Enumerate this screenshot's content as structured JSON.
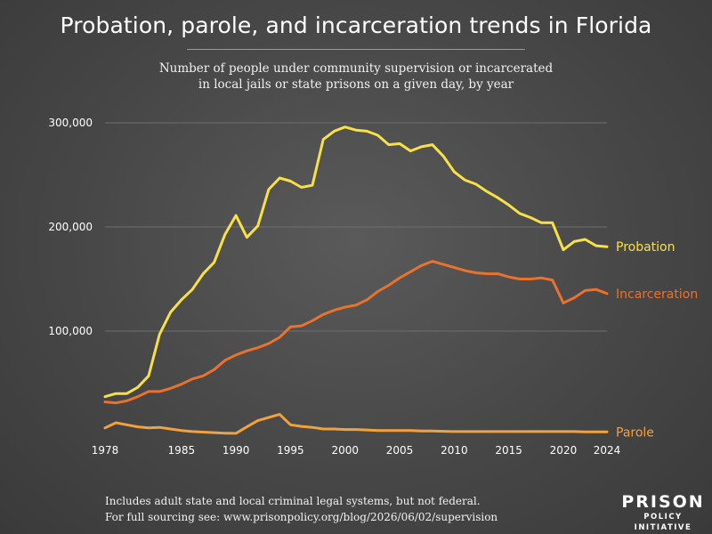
{
  "title": "Probation, parole, and incarceration trends in Florida",
  "subtitle": {
    "line1": "Number of people under community supervision or incarcerated",
    "line2": "in local jails or state prisons on a given day, by year"
  },
  "footer": {
    "line1": "Includes adult state and local criminal legal systems, but not federal.",
    "line2": "For full sourcing see: www.prisonpolicy.org/blog/2026/06/02/supervision"
  },
  "logo": {
    "line1": "PRISON",
    "line2": "POLICY INITIATIVE"
  },
  "colors": {
    "probation": "#f7e048",
    "incarceration": "#e8722e",
    "parole": "#f2a23c",
    "gridline": "#6e6e6e",
    "text": "#ffffff"
  },
  "chart_data": {
    "type": "line",
    "title": "Probation, parole, and incarceration trends in Florida",
    "xlabel": "",
    "ylabel": "",
    "xlim": [
      1978,
      2024
    ],
    "ylim": [
      0,
      300000
    ],
    "grid": "horizontal",
    "legend": "inline-right",
    "x_ticks": [
      "1978",
      "1985",
      "1990",
      "1995",
      "2000",
      "2005",
      "2010",
      "2015",
      "2020",
      "2024"
    ],
    "y_ticks": [
      "100,000",
      "200,000",
      "300,000"
    ],
    "x": [
      1978,
      1979,
      1980,
      1981,
      1982,
      1983,
      1984,
      1985,
      1986,
      1987,
      1988,
      1989,
      1990,
      1991,
      1992,
      1993,
      1994,
      1995,
      1996,
      1997,
      1998,
      1999,
      2000,
      2001,
      2002,
      2003,
      2004,
      2005,
      2006,
      2007,
      2008,
      2009,
      2010,
      2011,
      2012,
      2013,
      2014,
      2015,
      2016,
      2017,
      2018,
      2019,
      2020,
      2021,
      2022,
      2023,
      2024
    ],
    "series": [
      {
        "name": "Probation",
        "values": [
          37000,
          40000,
          40000,
          46000,
          57000,
          97000,
          118000,
          130000,
          140000,
          155000,
          166000,
          193000,
          211000,
          190000,
          201000,
          236000,
          247000,
          244000,
          238000,
          240000,
          284000,
          292000,
          296000,
          293000,
          292000,
          288000,
          279000,
          280000,
          273000,
          277000,
          279000,
          268000,
          253000,
          245000,
          241000,
          234000,
          228000,
          221000,
          213000,
          209000,
          204000,
          204000,
          178000,
          186000,
          188000,
          182000,
          181000
        ]
      },
      {
        "name": "Incarceration",
        "values": [
          32000,
          31000,
          33000,
          37000,
          42000,
          42000,
          45000,
          49000,
          54000,
          57000,
          63000,
          72000,
          77000,
          81000,
          84000,
          88000,
          94000,
          104000,
          105000,
          110000,
          116000,
          120000,
          123000,
          125000,
          130000,
          138000,
          144000,
          151000,
          157000,
          163000,
          167000,
          164000,
          161000,
          158000,
          156000,
          155000,
          155000,
          152000,
          150000,
          150000,
          151000,
          149000,
          127000,
          132000,
          139000,
          140000,
          136000
        ]
      },
      {
        "name": "Parole",
        "values": [
          7000,
          12000,
          10000,
          8000,
          7000,
          7500,
          6000,
          4500,
          3500,
          3000,
          2500,
          2000,
          1800,
          8000,
          14000,
          17000,
          20000,
          10000,
          8500,
          7500,
          6000,
          6000,
          5500,
          5500,
          5000,
          4500,
          4500,
          4500,
          4500,
          4000,
          4000,
          3800,
          3500,
          3500,
          3500,
          3500,
          3500,
          3500,
          3500,
          3500,
          3500,
          3500,
          3500,
          3500,
          3200,
          3200,
          3200
        ]
      }
    ]
  }
}
